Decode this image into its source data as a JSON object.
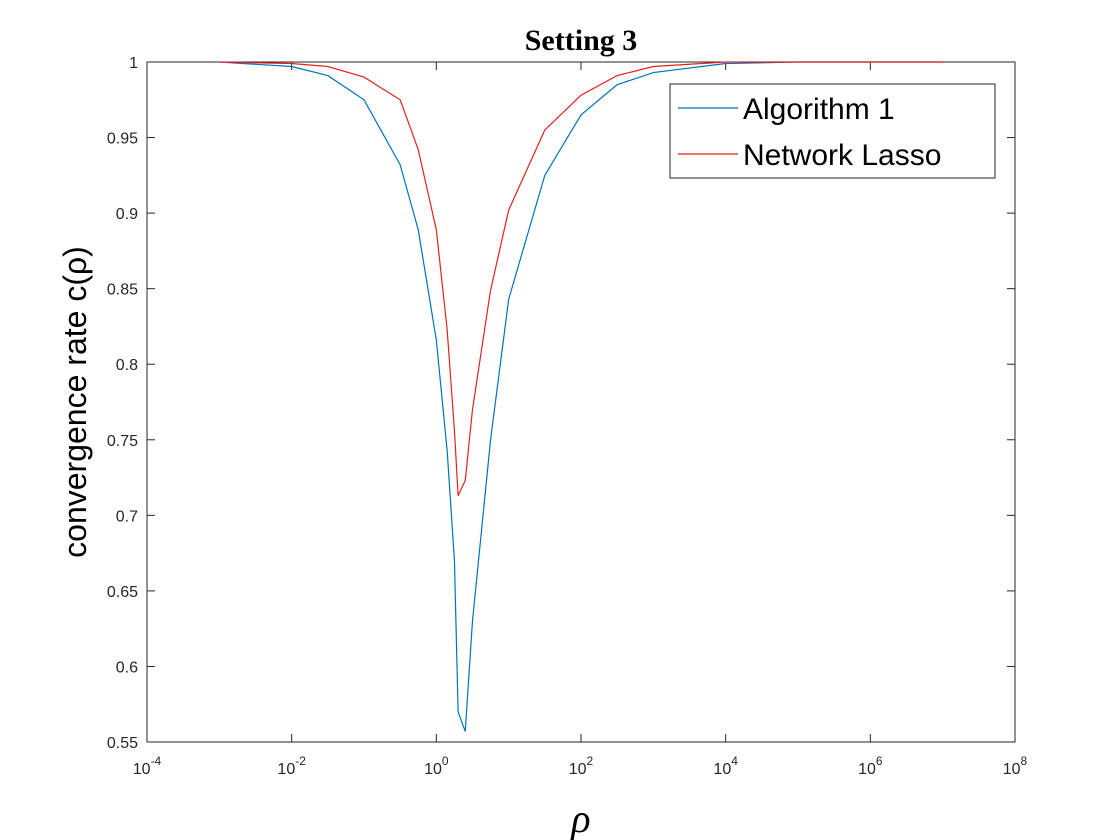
{
  "chart_data": {
    "type": "line",
    "title": "Setting 3",
    "x_label": "ρ",
    "y_label": "convergence rate c(ρ)",
    "x": [
      0.001,
      0.01,
      0.0316,
      0.1,
      0.316,
      0.562,
      1,
      1.41,
      1.78,
      2,
      2.51,
      3.16,
      5.62,
      10,
      31.6,
      100,
      316,
      1000,
      10000,
      100000,
      1000000,
      10000000
    ],
    "series": [
      {
        "name": "Algorithm 1",
        "color": "#0072bd",
        "values": [
          1.0,
          0.997,
          0.991,
          0.975,
          0.932,
          0.889,
          0.816,
          0.743,
          0.67,
          0.57,
          0.557,
          0.63,
          0.75,
          0.843,
          0.925,
          0.965,
          0.985,
          0.993,
          0.999,
          1.0,
          1.0,
          1.0
        ]
      },
      {
        "name": "Network Lasso",
        "color": "#e4211c",
        "values": [
          1.0,
          0.999,
          0.997,
          0.99,
          0.975,
          0.942,
          0.889,
          0.823,
          0.756,
          0.713,
          0.723,
          0.77,
          0.849,
          0.902,
          0.955,
          0.978,
          0.991,
          0.997,
          1.0,
          1.0,
          1.0,
          1.0
        ]
      }
    ],
    "xscale": "log",
    "xlim": [
      0.0001,
      100000000
    ],
    "xticks": [
      {
        "value": 0.0001,
        "label": "10-4"
      },
      {
        "value": 0.01,
        "label": "10-2"
      },
      {
        "value": 1,
        "label": "100"
      },
      {
        "value": 100,
        "label": "102"
      },
      {
        "value": 10000,
        "label": "104"
      },
      {
        "value": 1000000,
        "label": "106"
      },
      {
        "value": 100000000,
        "label": "108"
      }
    ],
    "ylim": [
      0.55,
      1
    ],
    "yticks": [
      0.55,
      0.6,
      0.65,
      0.7,
      0.75,
      0.8,
      0.85,
      0.9,
      0.95,
      1
    ],
    "grid": false,
    "legend_position": "upper-right"
  }
}
